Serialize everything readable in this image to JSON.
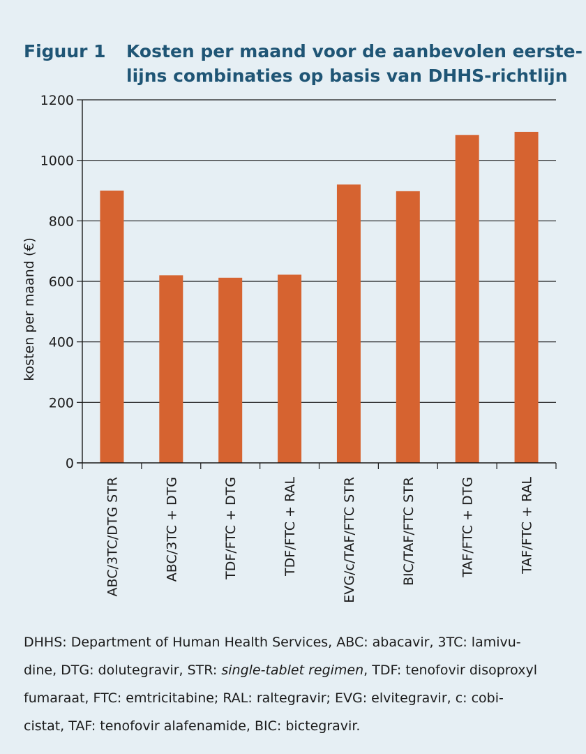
{
  "figure": {
    "label": "Figuur 1",
    "title_lines": [
      "Kosten per maand voor de aanbevolen eerste-",
      "lijns combinaties op basis van DHHS-richtlijn"
    ]
  },
  "colors": {
    "bar": "#d66330",
    "title": "#1f5575",
    "background": "#e6eff4",
    "axis": "#1a1a1a"
  },
  "chart_data": {
    "type": "bar",
    "title": "",
    "xlabel": "",
    "ylabel": "kosten per maand (€)",
    "ylim": [
      0,
      1200
    ],
    "yticks": [
      0,
      200,
      400,
      600,
      800,
      1000,
      1200
    ],
    "grid": true,
    "categories": [
      "ABC/3TC/DTG STR",
      "ABC/3TC + DTG",
      "TDF/FTC + DTG",
      "TDF/FTC + RAL",
      "EVG/c/TAF/FTC STR",
      "BIC/TAF/FTC STR",
      "TAF/FTC + DTG",
      "TAF/FTC + RAL"
    ],
    "values": [
      900,
      620,
      612,
      622,
      920,
      898,
      1084,
      1094
    ]
  },
  "footnote": {
    "line1": "DHHS: Department of Human Health Services, ABC: abacavir, 3TC: lamivu-",
    "line2_pre": "dine, DTG: dolutegravir, STR: ",
    "line2_em": "single-tablet regimen",
    "line2_post": ", TDF: tenofovir disoproxyl",
    "line3": "fumaraat, FTC: emtricitabine; RAL: raltegravir; EVG: elvitegravir, c: cobi-",
    "line4": "cistat, TAF: tenofovir alafenamide, BIC: bictegravir."
  }
}
